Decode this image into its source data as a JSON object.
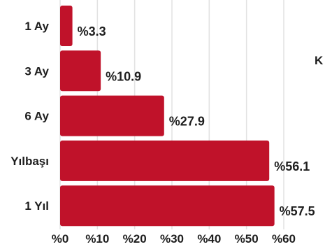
{
  "chart_data": {
    "type": "bar",
    "orientation": "horizontal",
    "categories": [
      "1 Ay",
      "3 Ay",
      "6 Ay",
      "Yılbaşı",
      "1 Yıl"
    ],
    "values": [
      3.3,
      10.9,
      27.9,
      56.1,
      57.5
    ],
    "value_labels": [
      "%3.3",
      "%10.9",
      "%27.9",
      "%56.1",
      "%57.5"
    ],
    "xticks": [
      0,
      10,
      20,
      30,
      40,
      50,
      60
    ],
    "xtick_labels": [
      "%0",
      "%10",
      "%20",
      "%30",
      "%40",
      "%50",
      "%60"
    ],
    "xlim": [
      0,
      60
    ],
    "grid": true,
    "bar_color": "#c0122a",
    "side_text": "K"
  }
}
